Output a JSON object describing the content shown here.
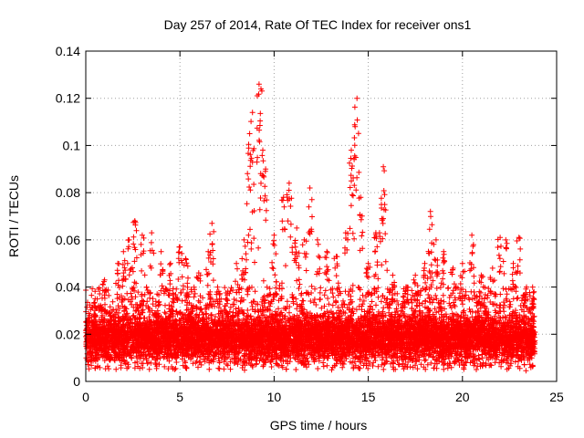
{
  "chart_data": {
    "type": "scatter",
    "title": "Day 257 of 2014, Rate Of TEC Index for receiver ons1",
    "xlabel": "GPS time / hours",
    "ylabel": "ROTI / TECUs",
    "xlim": [
      0,
      25
    ],
    "ylim": [
      0,
      0.14
    ],
    "xticks": [
      "0",
      "5",
      "10",
      "15",
      "20",
      "25"
    ],
    "yticks": [
      "0",
      "0.02",
      "0.04",
      "0.06",
      "0.08",
      "0.1",
      "0.12",
      "0.14"
    ],
    "grid": true,
    "marker": "+",
    "color": "#ff0000",
    "series": [
      {
        "name": "ROTI",
        "x_range": [
          0,
          23.85
        ],
        "typical_range": [
          0.005,
          0.04
        ],
        "peaks": [
          {
            "x": 0.5,
            "y": 0.035
          },
          {
            "x": 1.0,
            "y": 0.043
          },
          {
            "x": 1.7,
            "y": 0.05
          },
          {
            "x": 2.0,
            "y": 0.055
          },
          {
            "x": 2.3,
            "y": 0.06
          },
          {
            "x": 2.6,
            "y": 0.068
          },
          {
            "x": 3.0,
            "y": 0.062
          },
          {
            "x": 3.5,
            "y": 0.063
          },
          {
            "x": 4.0,
            "y": 0.055
          },
          {
            "x": 4.5,
            "y": 0.05
          },
          {
            "x": 5.0,
            "y": 0.057
          },
          {
            "x": 5.3,
            "y": 0.052
          },
          {
            "x": 6.0,
            "y": 0.046
          },
          {
            "x": 6.5,
            "y": 0.055
          },
          {
            "x": 6.7,
            "y": 0.067
          },
          {
            "x": 7.0,
            "y": 0.04
          },
          {
            "x": 7.5,
            "y": 0.033
          },
          {
            "x": 8.0,
            "y": 0.05
          },
          {
            "x": 8.4,
            "y": 0.06
          },
          {
            "x": 8.7,
            "y": 0.105
          },
          {
            "x": 8.85,
            "y": 0.114
          },
          {
            "x": 9.2,
            "y": 0.126
          },
          {
            "x": 9.3,
            "y": 0.124
          },
          {
            "x": 9.4,
            "y": 0.098
          },
          {
            "x": 9.55,
            "y": 0.09
          },
          {
            "x": 10.0,
            "y": 0.062
          },
          {
            "x": 10.5,
            "y": 0.078
          },
          {
            "x": 10.8,
            "y": 0.084
          },
          {
            "x": 11.2,
            "y": 0.065
          },
          {
            "x": 11.6,
            "y": 0.06
          },
          {
            "x": 11.9,
            "y": 0.082
          },
          {
            "x": 12.3,
            "y": 0.06
          },
          {
            "x": 12.8,
            "y": 0.055
          },
          {
            "x": 13.3,
            "y": 0.053
          },
          {
            "x": 13.8,
            "y": 0.063
          },
          {
            "x": 14.1,
            "y": 0.098
          },
          {
            "x": 14.3,
            "y": 0.108
          },
          {
            "x": 14.4,
            "y": 0.12
          },
          {
            "x": 14.6,
            "y": 0.078
          },
          {
            "x": 15.0,
            "y": 0.05
          },
          {
            "x": 15.4,
            "y": 0.063
          },
          {
            "x": 15.8,
            "y": 0.091
          },
          {
            "x": 15.7,
            "y": 0.075
          },
          {
            "x": 16.3,
            "y": 0.045
          },
          {
            "x": 17.0,
            "y": 0.04
          },
          {
            "x": 17.5,
            "y": 0.045
          },
          {
            "x": 18.0,
            "y": 0.05
          },
          {
            "x": 18.3,
            "y": 0.072
          },
          {
            "x": 18.6,
            "y": 0.06
          },
          {
            "x": 19.0,
            "y": 0.055
          },
          {
            "x": 19.5,
            "y": 0.048
          },
          {
            "x": 20.0,
            "y": 0.05
          },
          {
            "x": 20.5,
            "y": 0.062
          },
          {
            "x": 21.0,
            "y": 0.045
          },
          {
            "x": 21.6,
            "y": 0.048
          },
          {
            "x": 22.0,
            "y": 0.061
          },
          {
            "x": 22.3,
            "y": 0.06
          },
          {
            "x": 22.7,
            "y": 0.05
          },
          {
            "x": 23.0,
            "y": 0.061
          },
          {
            "x": 23.4,
            "y": 0.04
          },
          {
            "x": 23.8,
            "y": 0.038
          }
        ]
      }
    ]
  }
}
